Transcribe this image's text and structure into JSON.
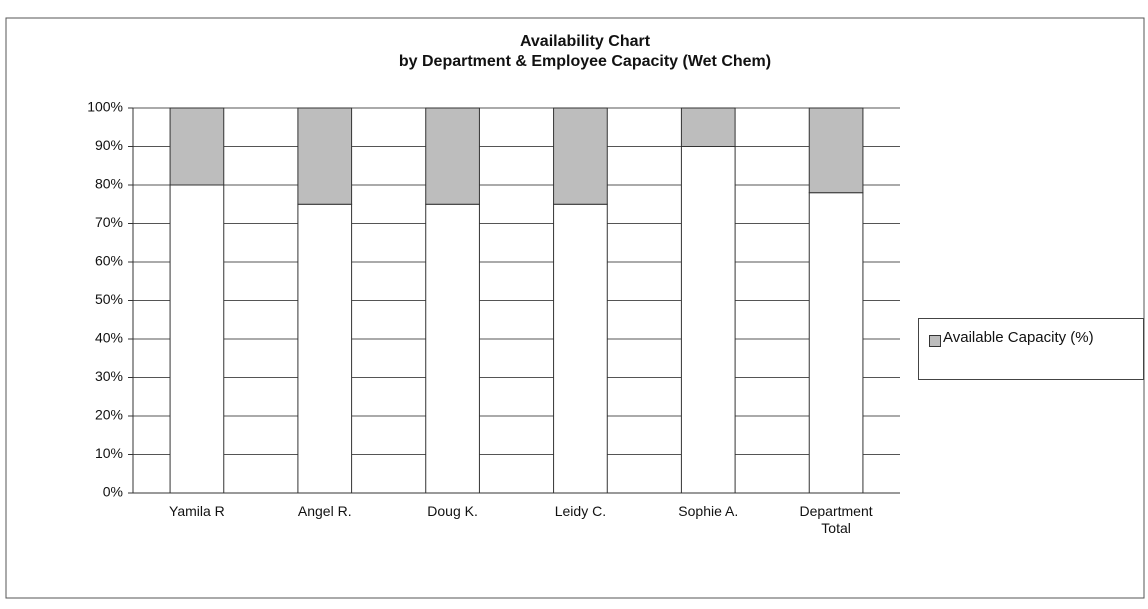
{
  "chart_data": {
    "type": "stacked_bar",
    "title": "Availability Chart",
    "subtitle": "by Department & Employee Capacity (Wet Chem)",
    "categories": [
      "Yamila R",
      "Angel R.",
      "Doug K.",
      "Leidy C.",
      "Sophie A.",
      "Department Total"
    ],
    "series": [
      {
        "color": "#ffffff",
        "values": [
          80,
          75,
          75,
          75,
          90,
          78
        ]
      },
      {
        "name": "Available Capacity (%)",
        "color": "#bdbdbd",
        "values": [
          20,
          25,
          25,
          25,
          10,
          22
        ]
      }
    ],
    "ylim": [
      0,
      100
    ],
    "yticks": [
      {
        "value": 0,
        "label": "0%"
      },
      {
        "value": 10,
        "label": "10%"
      },
      {
        "value": 20,
        "label": "20%"
      },
      {
        "value": 30,
        "label": "30%"
      },
      {
        "value": 40,
        "label": "40%"
      },
      {
        "value": 50,
        "label": "50%"
      },
      {
        "value": 60,
        "label": "60%"
      },
      {
        "value": 70,
        "label": "70%"
      },
      {
        "value": 80,
        "label": "80%"
      },
      {
        "value": 90,
        "label": "90%"
      },
      {
        "value": 100,
        "label": "100%"
      }
    ],
    "grid": true
  }
}
